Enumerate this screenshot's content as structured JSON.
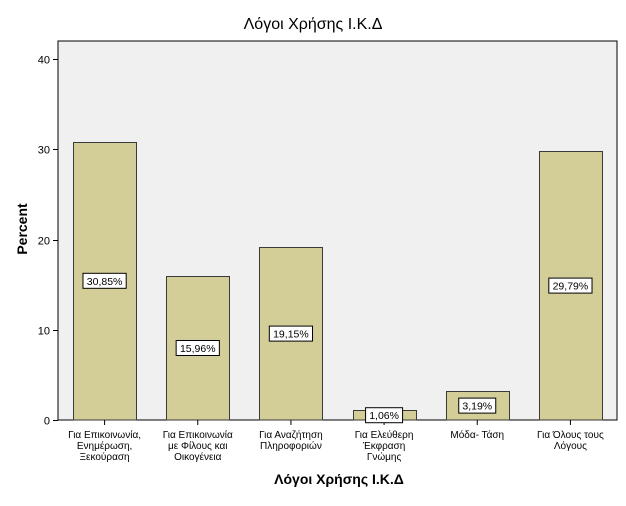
{
  "chart_data": {
    "type": "bar",
    "title": "Λόγοι Χρήσης Ι.Κ.Δ",
    "xlabel": "Λόγοι Χρήσης Ι.Κ.Δ",
    "ylabel": "Percent",
    "ylim": [
      0,
      42
    ],
    "yticks": [
      0,
      10,
      20,
      30,
      40
    ],
    "grid": false,
    "categories": [
      [
        "Για Επικοινωνία,",
        "Ενημέρωση,",
        "Ξεκούραση"
      ],
      [
        "Για Επικοινωνία",
        "με Φίλους και",
        "Οικογένεια"
      ],
      [
        "Για Αναζήτηση",
        "Πληροφοριών"
      ],
      [
        "Για Ελεύθερη",
        "Έκφραση",
        "Γνώμης"
      ],
      [
        "Μόδα- Τάση"
      ],
      [
        "Για Όλους τους",
        "Λόγους"
      ]
    ],
    "values": [
      30.85,
      15.96,
      19.15,
      1.06,
      3.19,
      29.79
    ],
    "data_labels": [
      "30,85%",
      "15,96%",
      "19,15%",
      "1,06%",
      "3,19%",
      "29,79%"
    ],
    "colors": {
      "bar_fill": "#d3ce97",
      "bar_stroke": "#3a3a3a",
      "plot_bg": "#f0f0f0",
      "plot_border": "#000000",
      "text": "#000000"
    }
  }
}
